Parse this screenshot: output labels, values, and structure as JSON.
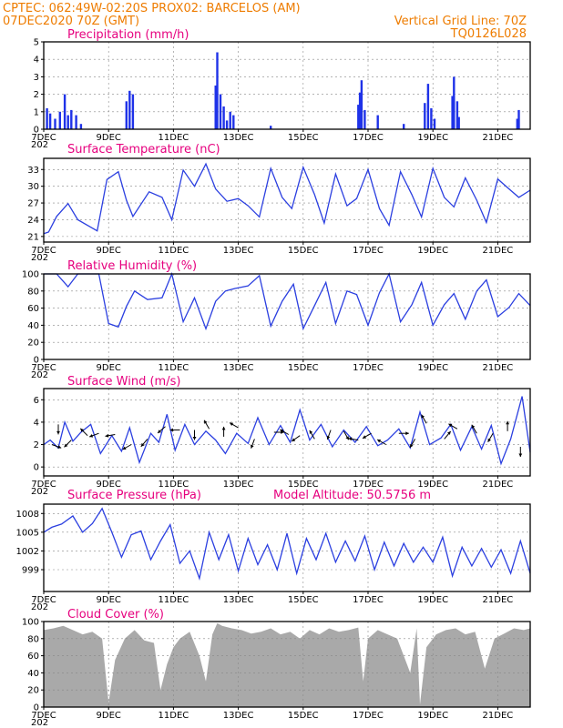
{
  "header": {
    "line1_left": "CPTEC:   062:49W-02:20S   PROX02: BARCELOS (AM)",
    "line2_left": "07DEC2020 70Z (GMT)",
    "line2_right": "Vertical Grid Line: 70Z",
    "line3_right": "TQ0126L028"
  },
  "model_altitude": "Model Altitude: 50.5756 m",
  "x_axis": {
    "start_day": 7,
    "end_day": 22,
    "tick_labels": [
      "7DEC",
      "9DEC",
      "11DEC",
      "13DEC",
      "15DEC",
      "17DEC",
      "19DEC",
      "21DEC"
    ],
    "tick_days": [
      7,
      9,
      11,
      13,
      15,
      17,
      19,
      21
    ],
    "year_stub": "202"
  },
  "colors": {
    "header": "#ee7c00",
    "title": "#e6007e",
    "series": "#2b3fe0",
    "bars": "#1f32e8",
    "cloud": "#a9a9a9"
  },
  "chart_data": [
    {
      "id": "precip",
      "type": "bar",
      "title": "Precipitation (mm/h)",
      "ylim": [
        0,
        5
      ],
      "yticks": [
        0,
        1,
        2,
        3,
        4,
        5
      ],
      "x": [
        7.1,
        7.2,
        7.35,
        7.5,
        7.65,
        7.75,
        7.85,
        8.0,
        8.15,
        9.55,
        9.65,
        9.75,
        12.3,
        12.35,
        12.45,
        12.55,
        12.65,
        12.75,
        12.85,
        14.0,
        16.7,
        16.75,
        16.8,
        16.9,
        17.3,
        18.1,
        18.75,
        18.85,
        18.95,
        19.05,
        19.6,
        19.65,
        19.75,
        19.8,
        21.6,
        21.65
      ],
      "values": [
        1.2,
        0.9,
        0.6,
        1.0,
        2.0,
        0.8,
        1.1,
        0.8,
        0.3,
        1.6,
        2.2,
        2.0,
        2.5,
        4.4,
        2.0,
        1.3,
        0.5,
        1.0,
        0.8,
        0.2,
        1.4,
        2.1,
        2.8,
        1.1,
        0.8,
        0.3,
        1.5,
        2.6,
        1.2,
        0.6,
        1.9,
        3.0,
        1.6,
        0.7,
        0.6,
        1.1
      ],
      "grid": true
    },
    {
      "id": "temp",
      "type": "line",
      "title": "Surface Temperature (nC)",
      "ylim": [
        20,
        35
      ],
      "yticks": [
        21,
        24,
        27,
        30,
        33
      ],
      "x": [
        7.0,
        7.15,
        7.4,
        7.75,
        8.05,
        8.5,
        8.65,
        8.95,
        9.3,
        9.55,
        9.75,
        10.25,
        10.65,
        10.95,
        11.3,
        11.65,
        12.0,
        12.3,
        12.65,
        13.0,
        13.3,
        13.65,
        14.0,
        14.35,
        14.65,
        15.0,
        15.35,
        15.65,
        16.0,
        16.35,
        16.65,
        17.0,
        17.35,
        17.65,
        18.0,
        18.35,
        18.65,
        19.0,
        19.35,
        19.65,
        20.0,
        20.35,
        20.65,
        21.0,
        21.35,
        21.65,
        22.0
      ],
      "values": [
        21.5,
        21.8,
        24.6,
        26.9,
        24.0,
        22.5,
        22.0,
        31.2,
        32.6,
        27.5,
        24.6,
        29.0,
        28.0,
        24.0,
        32.9,
        30.0,
        34.0,
        29.5,
        27.3,
        27.8,
        26.5,
        24.5,
        33.2,
        28.0,
        26.0,
        33.4,
        28.5,
        23.4,
        32.2,
        26.5,
        27.8,
        33.0,
        26.0,
        23.0,
        32.6,
        28.5,
        24.5,
        33.2,
        28.0,
        26.3,
        31.5,
        27.5,
        23.5,
        31.3,
        29.5,
        28.0,
        29.3
      ],
      "grid": true
    },
    {
      "id": "rh",
      "type": "line",
      "title": "Relative Humidity (%)",
      "ylim": [
        0,
        100
      ],
      "yticks": [
        0,
        20,
        40,
        60,
        80,
        100
      ],
      "x": [
        7.0,
        7.4,
        7.75,
        8.05,
        8.5,
        8.7,
        9.0,
        9.3,
        9.55,
        9.8,
        10.2,
        10.65,
        10.95,
        11.3,
        11.65,
        12.0,
        12.3,
        12.6,
        12.9,
        13.3,
        13.65,
        14.0,
        14.35,
        14.7,
        15.0,
        15.35,
        15.7,
        16.0,
        16.35,
        16.65,
        17.0,
        17.35,
        17.65,
        18.0,
        18.35,
        18.65,
        19.0,
        19.35,
        19.65,
        20.0,
        20.35,
        20.65,
        21.0,
        21.35,
        21.65,
        22.0
      ],
      "values": [
        100.0,
        100.0,
        85.0,
        100.0,
        100.0,
        100.0,
        42.0,
        38.0,
        62.0,
        80.0,
        70.0,
        72.0,
        100.0,
        44.0,
        72.0,
        36.0,
        68.0,
        80.0,
        83.0,
        86.0,
        98.0,
        39.0,
        68.0,
        88.0,
        36.0,
        63.0,
        90.0,
        42.0,
        80.0,
        76.0,
        40.0,
        78.0,
        100.0,
        44.0,
        64.0,
        90.0,
        40.0,
        64.0,
        77.0,
        47.0,
        80.0,
        93.0,
        50.0,
        61.0,
        77.0,
        63.0
      ],
      "grid": true
    },
    {
      "id": "wind",
      "type": "line",
      "title": "Surface Wind (m/s)",
      "ylim": [
        -0.8,
        7.0
      ],
      "yticks": [
        0,
        2,
        4,
        6
      ],
      "x": [
        7.0,
        7.2,
        7.45,
        7.65,
        7.9,
        8.15,
        8.45,
        8.75,
        9.1,
        9.4,
        9.65,
        9.95,
        10.3,
        10.55,
        10.8,
        11.05,
        11.35,
        11.65,
        12.0,
        12.3,
        12.6,
        12.95,
        13.3,
        13.6,
        13.95,
        14.3,
        14.6,
        14.9,
        15.2,
        15.55,
        15.9,
        16.25,
        16.6,
        16.95,
        17.3,
        17.6,
        17.95,
        18.3,
        18.6,
        18.9,
        19.25,
        19.55,
        19.85,
        20.2,
        20.5,
        20.8,
        21.1,
        21.4,
        21.75,
        22.0
      ],
      "values": [
        2.0,
        2.4,
        1.7,
        4.0,
        2.3,
        3.1,
        3.8,
        1.2,
        2.8,
        1.4,
        3.5,
        0.4,
        3.0,
        2.2,
        4.7,
        1.5,
        3.8,
        2.0,
        3.2,
        2.4,
        1.2,
        3.0,
        2.1,
        4.4,
        2.0,
        3.7,
        2.2,
        5.1,
        2.4,
        3.8,
        1.8,
        3.3,
        2.2,
        3.6,
        1.9,
        2.4,
        3.4,
        1.7,
        4.9,
        2.0,
        2.6,
        3.8,
        1.5,
        3.6,
        1.6,
        3.7,
        0.3,
        2.5,
        6.3,
        1.3
      ],
      "arrows": [
        {
          "day": 7.25,
          "speed": 2.0,
          "dir": 110
        },
        {
          "day": 7.45,
          "speed": 3.8,
          "dir": 180
        },
        {
          "day": 7.85,
          "speed": 2.4,
          "dir": 225
        },
        {
          "day": 8.35,
          "speed": 2.8,
          "dir": 315
        },
        {
          "day": 8.7,
          "speed": 3.0,
          "dir": 250
        },
        {
          "day": 9.2,
          "speed": 2.9,
          "dir": 260
        },
        {
          "day": 9.7,
          "speed": 2.0,
          "dir": 240
        },
        {
          "day": 10.2,
          "speed": 2.5,
          "dir": 220
        },
        {
          "day": 10.75,
          "speed": 3.6,
          "dir": 230
        },
        {
          "day": 11.2,
          "speed": 3.3,
          "dir": 270
        },
        {
          "day": 11.65,
          "speed": 3.3,
          "dir": 180
        },
        {
          "day": 12.1,
          "speed": 3.4,
          "dir": 330
        },
        {
          "day": 12.55,
          "speed": 2.7,
          "dir": 0
        },
        {
          "day": 13.0,
          "speed": 3.5,
          "dir": 300
        },
        {
          "day": 13.5,
          "speed": 2.5,
          "dir": 200
        },
        {
          "day": 14.1,
          "speed": 3.1,
          "dir": 90
        },
        {
          "day": 14.55,
          "speed": 2.9,
          "dir": 300
        },
        {
          "day": 14.9,
          "speed": 2.8,
          "dir": 235
        },
        {
          "day": 15.35,
          "speed": 2.5,
          "dir": 330
        },
        {
          "day": 15.85,
          "speed": 3.3,
          "dir": 200
        },
        {
          "day": 16.25,
          "speed": 3.2,
          "dir": 150
        },
        {
          "day": 16.7,
          "speed": 2.4,
          "dir": 280
        },
        {
          "day": 17.1,
          "speed": 3.0,
          "dir": 240
        },
        {
          "day": 17.55,
          "speed": 2.0,
          "dir": 300
        },
        {
          "day": 17.95,
          "speed": 3.0,
          "dir": 90
        },
        {
          "day": 18.45,
          "speed": 2.5,
          "dir": 210
        },
        {
          "day": 18.8,
          "speed": 3.9,
          "dir": 330
        },
        {
          "day": 19.35,
          "speed": 2.5,
          "dir": 40
        },
        {
          "day": 19.75,
          "speed": 3.4,
          "dir": 300
        },
        {
          "day": 20.35,
          "speed": 3.0,
          "dir": 330
        },
        {
          "day": 20.85,
          "speed": 3.0,
          "dir": 210
        },
        {
          "day": 21.3,
          "speed": 3.2,
          "dir": 0
        },
        {
          "day": 21.7,
          "speed": 1.8,
          "dir": 180
        }
      ],
      "grid": true
    },
    {
      "id": "pres",
      "type": "line",
      "title": "Surface Pressure (hPa)",
      "ylim": [
        995.5,
        1009.5
      ],
      "yticks": [
        999,
        1002,
        1005,
        1008
      ],
      "x": [
        7.0,
        7.25,
        7.55,
        7.9,
        8.2,
        8.5,
        8.8,
        9.1,
        9.4,
        9.7,
        10.0,
        10.3,
        10.6,
        10.9,
        11.2,
        11.5,
        11.8,
        12.1,
        12.4,
        12.7,
        13.0,
        13.3,
        13.6,
        13.9,
        14.2,
        14.5,
        14.8,
        15.1,
        15.4,
        15.7,
        16.0,
        16.3,
        16.6,
        16.9,
        17.2,
        17.5,
        17.8,
        18.1,
        18.4,
        18.7,
        19.0,
        19.3,
        19.6,
        19.9,
        20.2,
        20.5,
        20.8,
        21.1,
        21.4,
        21.7,
        22.0
      ],
      "values": [
        1005.0,
        1005.8,
        1006.3,
        1007.6,
        1005.0,
        1006.4,
        1008.8,
        1005.0,
        1001.0,
        1004.6,
        1005.2,
        1000.6,
        1003.6,
        1006.2,
        1000.0,
        1002.0,
        997.6,
        1005.0,
        1000.6,
        1004.6,
        998.8,
        1004.0,
        999.8,
        1003.0,
        999.0,
        1004.8,
        998.4,
        1004.0,
        1000.6,
        1004.8,
        1000.2,
        1003.6,
        1000.4,
        1004.4,
        999.0,
        1003.4,
        999.6,
        1003.2,
        1000.2,
        1002.6,
        1000.2,
        1004.2,
        998.0,
        1002.6,
        999.6,
        1002.4,
        999.4,
        1002.2,
        998.4,
        1003.6,
        998.4
      ],
      "grid": true
    },
    {
      "id": "cloud",
      "type": "area",
      "title": "Cloud Cover (%)",
      "ylim": [
        0,
        100
      ],
      "yticks": [
        0,
        20,
        40,
        60,
        80,
        100
      ],
      "x": [
        7.0,
        7.3,
        7.6,
        7.9,
        8.2,
        8.5,
        8.8,
        9.0,
        9.2,
        9.5,
        9.8,
        10.1,
        10.4,
        10.6,
        10.8,
        11.0,
        11.2,
        11.5,
        11.8,
        12.0,
        12.2,
        12.35,
        12.5,
        12.8,
        13.1,
        13.4,
        13.7,
        14.0,
        14.3,
        14.6,
        14.9,
        15.2,
        15.5,
        15.8,
        16.1,
        16.4,
        16.7,
        16.85,
        17.0,
        17.3,
        17.6,
        17.9,
        18.1,
        18.3,
        18.5,
        18.6,
        18.8,
        19.1,
        19.4,
        19.7,
        20.0,
        20.3,
        20.6,
        20.9,
        21.2,
        21.5,
        21.8,
        22.0
      ],
      "values": [
        90.0,
        92.0,
        95.0,
        90.0,
        85.0,
        88.0,
        80.0,
        5.0,
        55.0,
        80.0,
        90.0,
        78.0,
        75.0,
        20.0,
        50.0,
        70.0,
        80.0,
        88.0,
        60.0,
        30.0,
        85.0,
        98.0,
        95.0,
        92.0,
        90.0,
        86.0,
        88.0,
        92.0,
        85.0,
        88.0,
        80.0,
        90.0,
        85.0,
        92.0,
        88.0,
        90.0,
        93.0,
        30.0,
        80.0,
        90.0,
        85.0,
        80.0,
        60.0,
        40.0,
        92.0,
        3.0,
        70.0,
        85.0,
        90.0,
        92.0,
        85.0,
        88.0,
        45.0,
        80.0,
        86.0,
        92.0,
        90.0,
        92.0
      ],
      "grid": true
    }
  ]
}
